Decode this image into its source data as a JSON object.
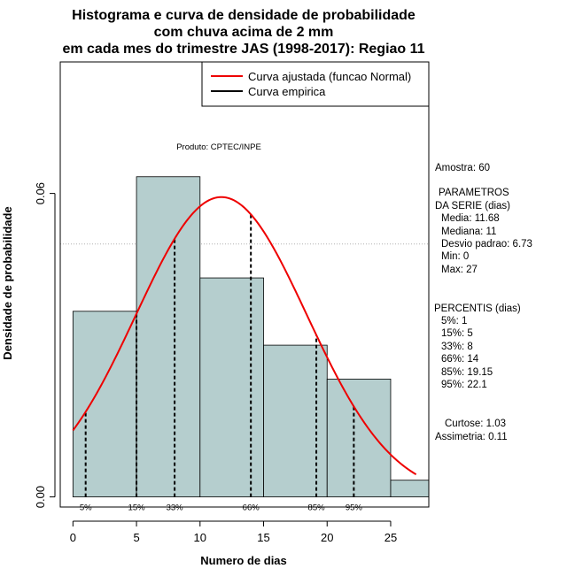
{
  "chart_data": {
    "type": "histogram",
    "title_lines": [
      "Histograma e curva de densidade de probabilidade",
      "com chuva acima de 2 mm",
      "em cada mes do trimestre JAS (1998-2017): Regiao 11"
    ],
    "xlabel": "Numero de dias",
    "ylabel": "Densidade de probabilidade",
    "xlim": [
      -1,
      28
    ],
    "ylim": [
      -0.002,
      0.086
    ],
    "x_ticks": [
      0,
      5,
      10,
      15,
      20,
      25
    ],
    "y_ticks": [
      0.0,
      0.06
    ],
    "y_tick_labels": [
      "0.00",
      "0.06"
    ],
    "gridlines_y": [
      0.05,
      0.1
    ],
    "bins": [
      {
        "start": 0,
        "end": 5,
        "density": 0.0367
      },
      {
        "start": 5,
        "end": 10,
        "density": 0.0633
      },
      {
        "start": 10,
        "end": 15,
        "density": 0.0433
      },
      {
        "start": 15,
        "end": 20,
        "density": 0.03
      },
      {
        "start": 20,
        "end": 25,
        "density": 0.0233
      },
      {
        "start": 25,
        "end": 30,
        "density": 0.0033
      }
    ],
    "normal_fit": {
      "mean": 11.68,
      "sd": 6.73,
      "x_range": [
        0,
        27
      ]
    },
    "percentile_lines": [
      {
        "label": "5%",
        "x": 1
      },
      {
        "label": "15%",
        "x": 5
      },
      {
        "label": "33%",
        "x": 8
      },
      {
        "label": "66%",
        "x": 14
      },
      {
        "label": "85%",
        "x": 19.15
      },
      {
        "label": "95%",
        "x": 22.1
      }
    ],
    "legend": [
      {
        "label": "Curva ajustada (funcao Normal)",
        "color": "#ee0000"
      },
      {
        "label": "Curva empirica",
        "color": "#000000"
      }
    ],
    "product_label": "Produto: CPTEC/INPE",
    "side_text": {
      "amostra": "Amostra: 60",
      "parametros_title1": "PARAMETROS",
      "parametros_title2": "DA SERIE (dias)",
      "media": "Media: 11.68",
      "mediana": "Mediana: 11",
      "desvio": "Desvio padrao: 6.73",
      "min": "Min: 0",
      "max": "Max: 27",
      "percentis_title": "PERCENTIS (dias)",
      "p5": "5%: 1",
      "p15": "15%: 5",
      "p33": "33%: 8",
      "p66": "66%: 14",
      "p85": "85%: 19.15",
      "p95": "95%: 22.1",
      "curtose": "Curtose: 1.03",
      "assimetria": "Assimetria: 0.11"
    },
    "colors": {
      "bar_fill": "#b5cece",
      "fit_curve": "#ee0000",
      "grid": "#b0b0b0"
    }
  }
}
